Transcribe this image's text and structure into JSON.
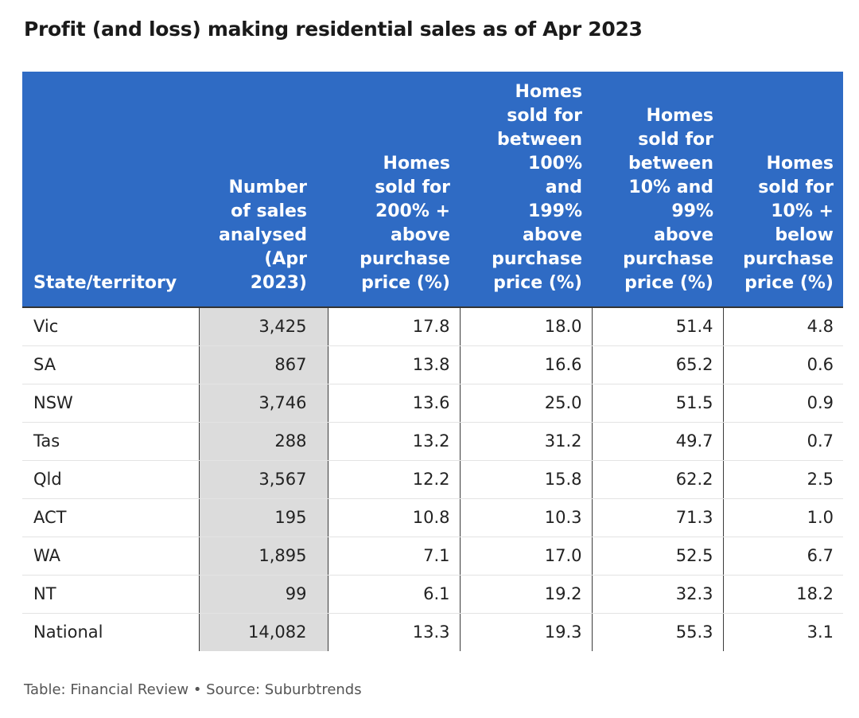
{
  "title": "Profit (and loss) making residential sales as of Apr 2023",
  "footer": "Table: Financial Review • Source: Suburbtrends",
  "colors": {
    "header_background": "#2f6bc4",
    "header_text": "#ffffff",
    "highlight_column": "#dcdcdc"
  },
  "chart_data": {
    "type": "table",
    "title": "Profit (and loss) making residential sales as of Apr 2023",
    "columns": [
      "State/territory",
      "Number of sales analysed (Apr 2023)",
      "Homes sold for 200% + above purchase price (%)",
      "Homes sold for between 100% and 199% above purchase price (%)",
      "Homes sold for between 10% and 99% above purchase price (%)",
      "Homes sold for 10% + below purchase price (%)"
    ],
    "header_lines": [
      "State/territory",
      "Number\nof sales\nanalysed\n(Apr\n2023)",
      "Homes\nsold for\n200% +\nabove\npurchase\nprice (%)",
      "Homes\nsold for\nbetween\n100%\nand\n199%\nabove\npurchase\nprice (%)",
      "Homes\nsold for\nbetween\n10% and\n99%\nabove\npurchase\nprice (%)",
      "Homes\nsold for\n10% +\nbelow\npurchase\nprice (%)"
    ],
    "rows": [
      [
        "Vic",
        "3,425",
        "17.8",
        "18.0",
        "51.4",
        "4.8"
      ],
      [
        "SA",
        "867",
        "13.8",
        "16.6",
        "65.2",
        "0.6"
      ],
      [
        "NSW",
        "3,746",
        "13.6",
        "25.0",
        "51.5",
        "0.9"
      ],
      [
        "Tas",
        "288",
        "13.2",
        "31.2",
        "49.7",
        "0.7"
      ],
      [
        "Qld",
        "3,567",
        "12.2",
        "15.8",
        "62.2",
        "2.5"
      ],
      [
        "ACT",
        "195",
        "10.8",
        "10.3",
        "71.3",
        "1.0"
      ],
      [
        "WA",
        "1,895",
        "7.1",
        "17.0",
        "52.5",
        "6.7"
      ],
      [
        "NT",
        "99",
        "6.1",
        "19.2",
        "32.3",
        "18.2"
      ],
      [
        "National",
        "14,082",
        "13.3",
        "19.3",
        "55.3",
        "3.1"
      ]
    ]
  }
}
